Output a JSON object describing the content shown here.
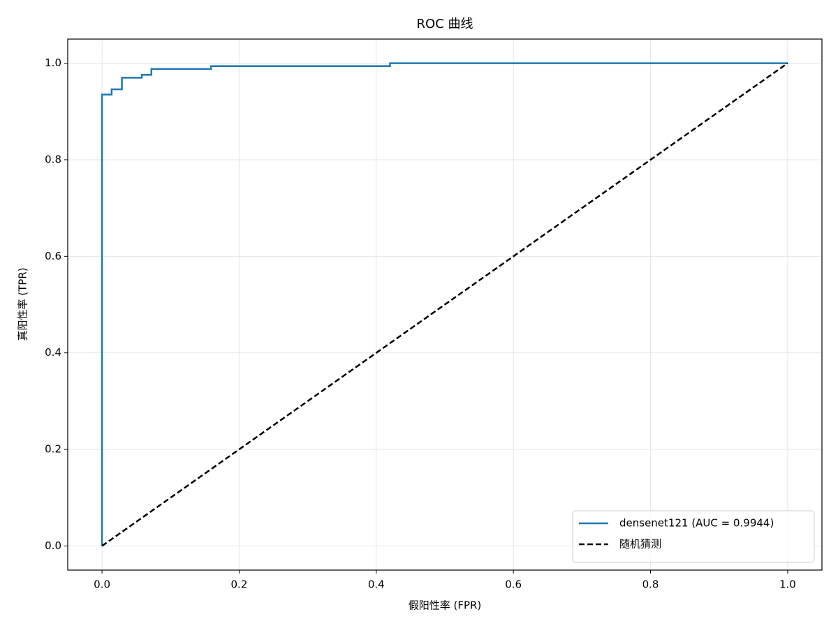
{
  "chart_data": {
    "type": "line",
    "title": "ROC 曲线",
    "x_label": "假阳性率 (FPR)",
    "y_label": "真阳性率 (TPR)",
    "xlim": [
      -0.05,
      1.05
    ],
    "ylim": [
      -0.05,
      1.05
    ],
    "xticks": [
      {
        "value": 0,
        "label": "0.0"
      },
      0.2,
      0.4,
      0.6,
      0.8,
      {
        "value": 1,
        "label": "1.0"
      }
    ],
    "yticks": [
      {
        "value": 0,
        "label": "0.0"
      },
      0.2,
      0.4,
      0.6,
      0.8,
      {
        "value": 1,
        "label": "1.0"
      }
    ],
    "grid": true,
    "legend_position": "lower right",
    "series": [
      {
        "name": "densenet121 (AUC = 0.9944)",
        "color": "#1f77b4",
        "linestyle": "solid",
        "x": [
          0,
          0,
          0.014,
          0.014,
          0.029,
          0.029,
          0.058,
          0.058,
          0.072,
          0.072,
          0.159,
          0.159,
          0.42,
          0.42,
          1.0
        ],
        "values": [
          0,
          0.935,
          0.935,
          0.946,
          0.946,
          0.97,
          0.97,
          0.976,
          0.976,
          0.988,
          0.988,
          0.994,
          0.994,
          1.0,
          1.0
        ]
      },
      {
        "name": "随机猜测",
        "color": "#000000",
        "linestyle": "dashed",
        "x": [
          0,
          1
        ],
        "values": [
          0,
          1
        ]
      }
    ]
  }
}
